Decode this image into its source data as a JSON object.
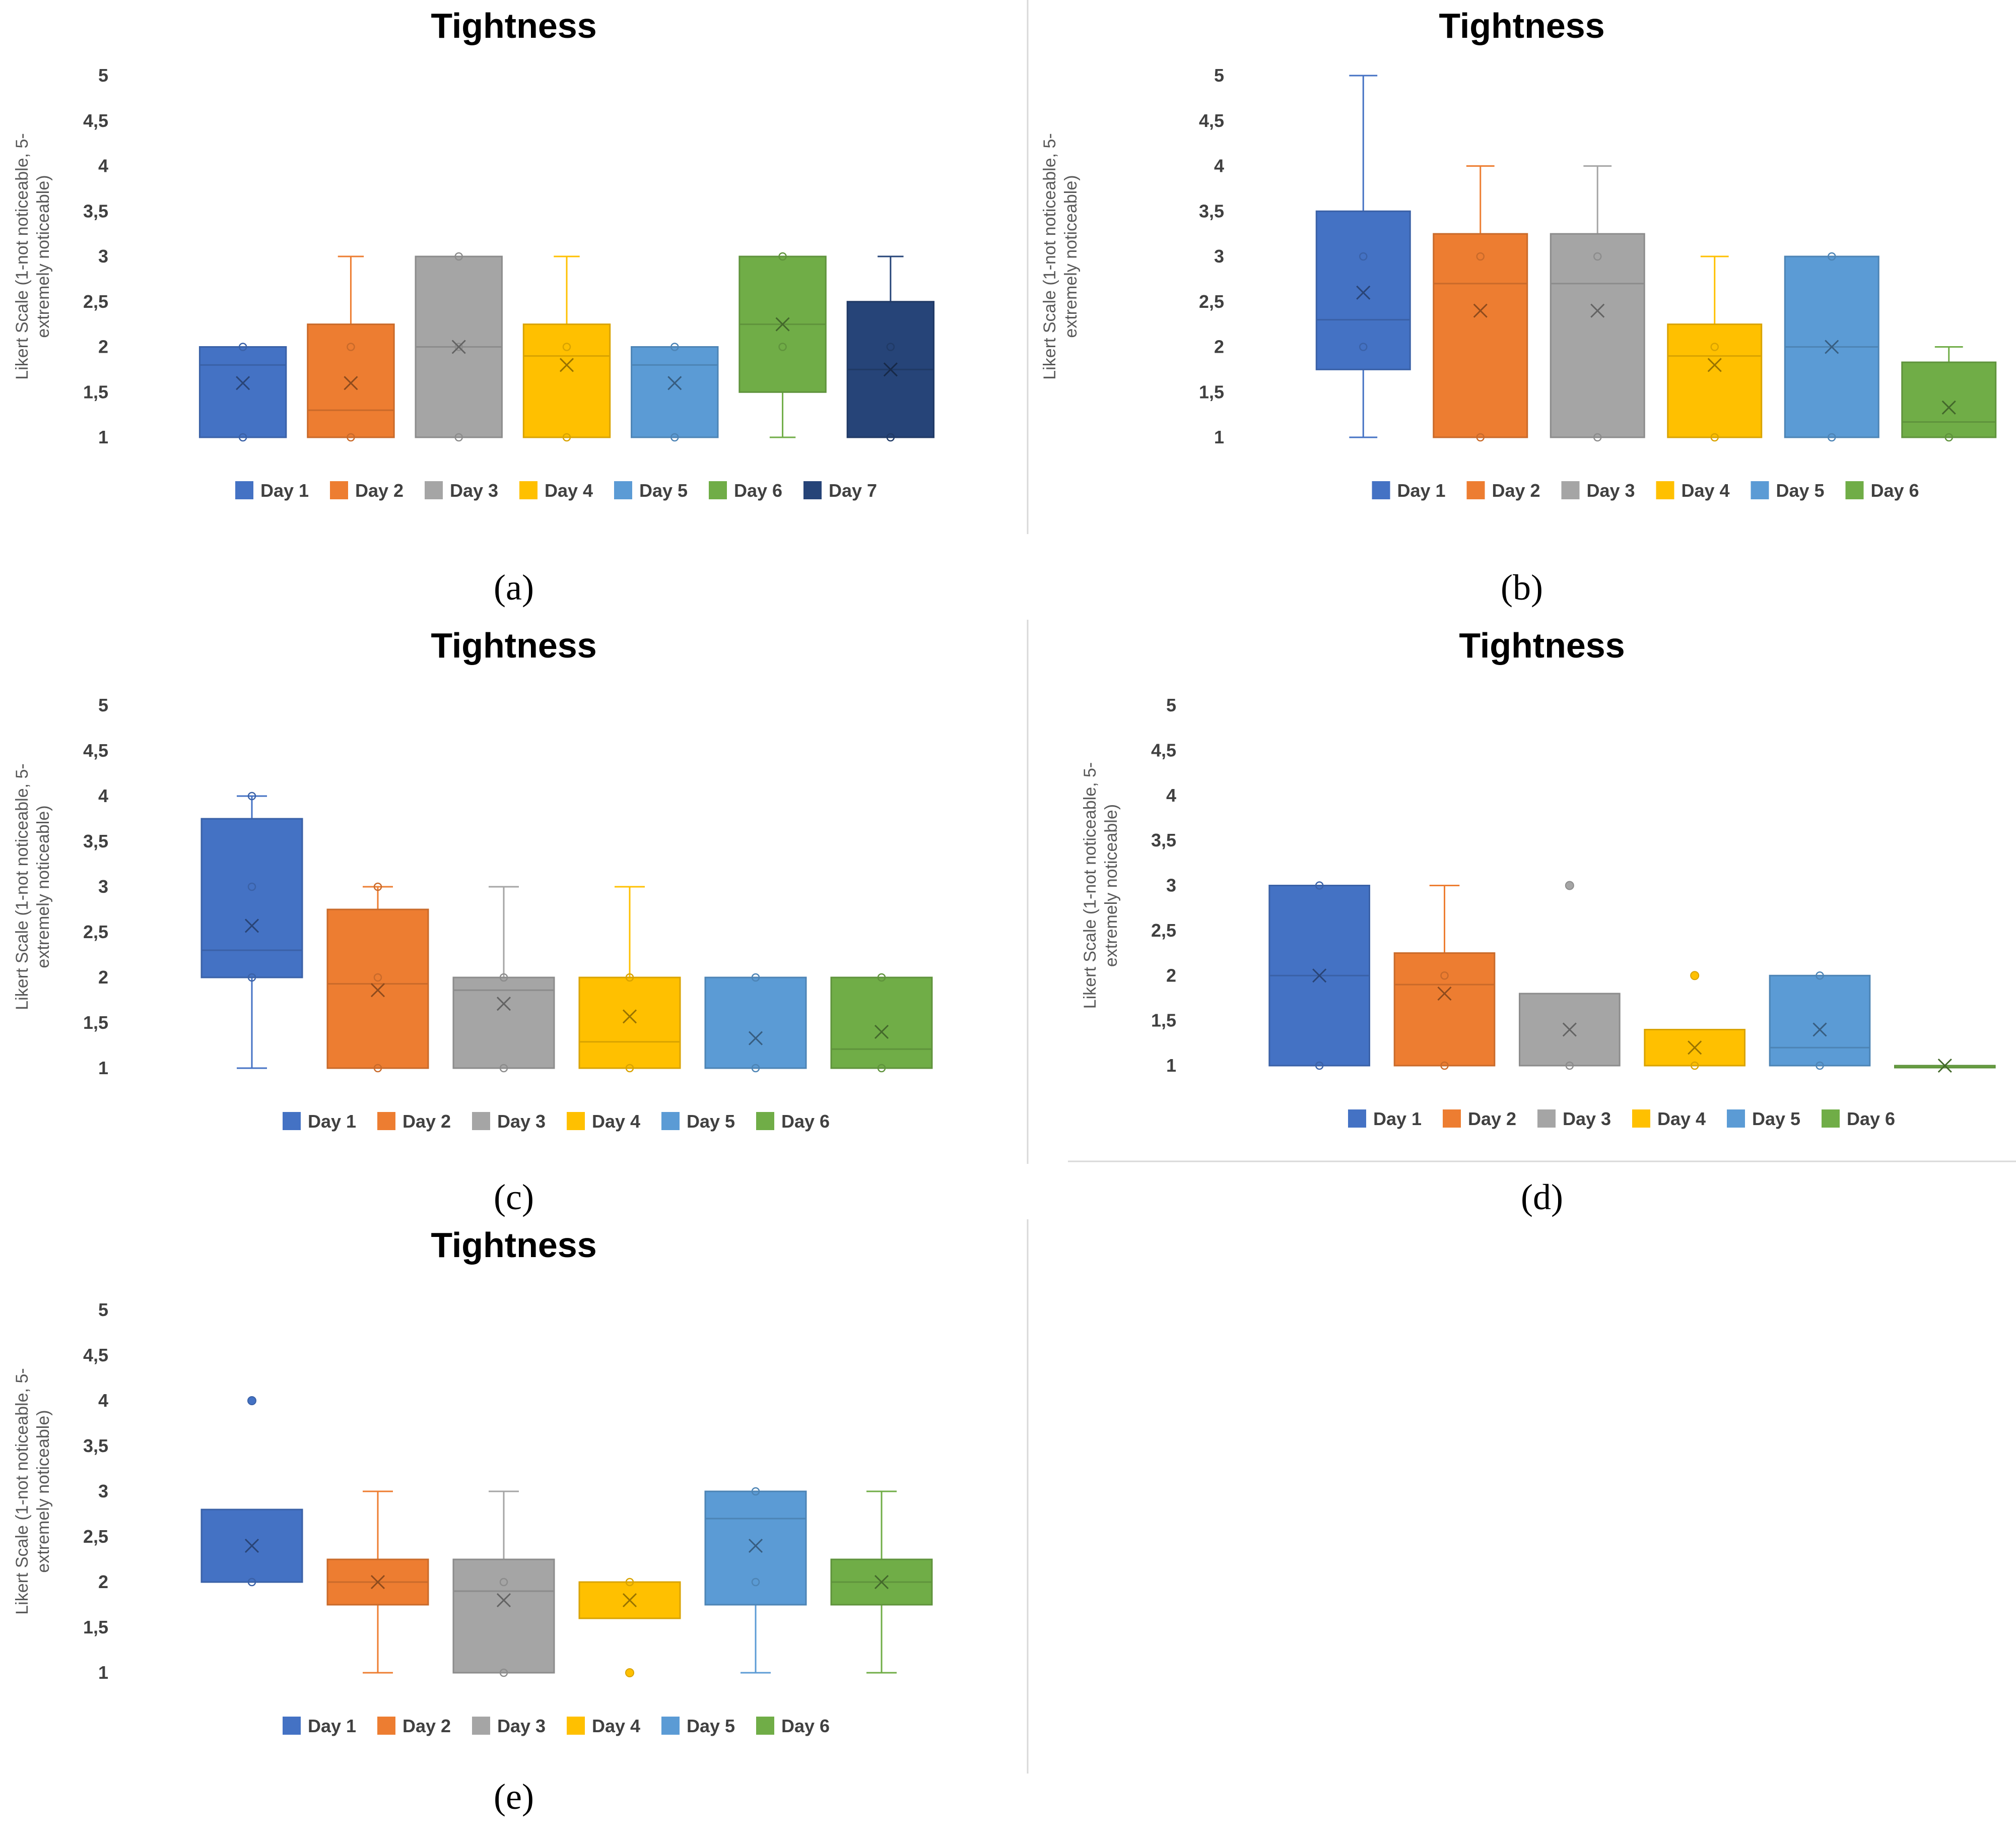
{
  "colors": {
    "Day 1": "#4472C4",
    "Day 2": "#ED7D31",
    "Day 3": "#A5A5A5",
    "Day 4": "#FFC000",
    "Day 5": "#5B9BD5",
    "Day 6": "#70AD47",
    "Day 7": "#264478"
  },
  "chart_data": [
    {
      "type": "box",
      "panel_label": "(a)",
      "title": "Tightness",
      "ylabel": "Likert Scale (1-not noticeable, 5-extremely noticeable)",
      "ylim": [
        1,
        5
      ],
      "yticks": [
        "1",
        "1,5",
        "2",
        "2,5",
        "3",
        "3,5",
        "4",
        "4,5",
        "5"
      ],
      "legend": "bottom",
      "series": [
        {
          "name": "Day 1",
          "min": 1,
          "q1": 1,
          "median": 1.8,
          "q3": 2,
          "max": 2,
          "mean": 1.6,
          "points": [
            1,
            2
          ],
          "outliers": []
        },
        {
          "name": "Day 2",
          "min": 1,
          "q1": 1,
          "median": 1.3,
          "q3": 2.25,
          "max": 3,
          "mean": 1.6,
          "points": [
            1,
            2
          ],
          "outliers": []
        },
        {
          "name": "Day 3",
          "min": 1,
          "q1": 1,
          "median": 2,
          "q3": 3,
          "max": 3,
          "mean": 2,
          "points": [
            1,
            2,
            3
          ],
          "outliers": []
        },
        {
          "name": "Day 4",
          "min": 1,
          "q1": 1,
          "median": 1.9,
          "q3": 2.25,
          "max": 3,
          "mean": 1.8,
          "points": [
            1,
            2
          ],
          "outliers": []
        },
        {
          "name": "Day 5",
          "min": 1,
          "q1": 1,
          "median": 1.8,
          "q3": 2,
          "max": 2,
          "mean": 1.6,
          "points": [
            1,
            2
          ],
          "outliers": []
        },
        {
          "name": "Day 6",
          "min": 1,
          "q1": 1.5,
          "median": 2.25,
          "q3": 3,
          "max": 3,
          "mean": 2.25,
          "points": [
            2,
            3
          ],
          "outliers": []
        },
        {
          "name": "Day 7",
          "min": 1,
          "q1": 1,
          "median": 1.75,
          "q3": 2.5,
          "max": 3,
          "mean": 1.75,
          "points": [
            1,
            2
          ],
          "outliers": []
        }
      ]
    },
    {
      "type": "box",
      "panel_label": "(b)",
      "title": "Tightness",
      "ylabel": "Likert Scale (1-not noticeable, 5-extremely noticeable)",
      "ylim": [
        1,
        5
      ],
      "yticks": [
        "1",
        "1,5",
        "2",
        "2,5",
        "3",
        "3,5",
        "4",
        "4,5",
        "5"
      ],
      "legend": "bottom",
      "series": [
        {
          "name": "Day 1",
          "min": 1,
          "q1": 1.75,
          "median": 2.3,
          "q3": 3.5,
          "max": 5,
          "mean": 2.6,
          "points": [
            2,
            3
          ],
          "outliers": []
        },
        {
          "name": "Day 2",
          "min": 1,
          "q1": 1,
          "median": 2.7,
          "q3": 3.25,
          "max": 4,
          "mean": 2.4,
          "points": [
            1,
            3
          ],
          "outliers": []
        },
        {
          "name": "Day 3",
          "min": 1,
          "q1": 1,
          "median": 2.7,
          "q3": 3.25,
          "max": 4,
          "mean": 2.4,
          "points": [
            1,
            3
          ],
          "outliers": []
        },
        {
          "name": "Day 4",
          "min": 1,
          "q1": 1,
          "median": 1.9,
          "q3": 2.25,
          "max": 3,
          "mean": 1.8,
          "points": [
            1,
            2
          ],
          "outliers": []
        },
        {
          "name": "Day 5",
          "min": 1,
          "q1": 1,
          "median": 2,
          "q3": 3,
          "max": 3,
          "mean": 2,
          "points": [
            1,
            3
          ],
          "outliers": []
        },
        {
          "name": "Day 6",
          "min": 1,
          "q1": 1,
          "median": 1.17,
          "q3": 1.83,
          "max": 2,
          "mean": 1.33,
          "points": [
            1
          ],
          "outliers": []
        }
      ]
    },
    {
      "type": "box",
      "panel_label": "(c)",
      "title": "Tightness",
      "ylabel": "Likert Scale (1-not noticeable, 5-extremely noticeable)",
      "ylim": [
        1,
        5
      ],
      "yticks": [
        "1",
        "1,5",
        "2",
        "2,5",
        "3",
        "3,5",
        "4",
        "4,5",
        "5"
      ],
      "legend": "bottom",
      "series": [
        {
          "name": "Day 1",
          "min": 1,
          "q1": 2,
          "median": 2.3,
          "q3": 3.75,
          "max": 4,
          "mean": 2.57,
          "points": [
            2,
            3,
            4
          ],
          "outliers": []
        },
        {
          "name": "Day 2",
          "min": 1,
          "q1": 1,
          "median": 1.93,
          "q3": 2.75,
          "max": 3,
          "mean": 1.86,
          "points": [
            1,
            2,
            3
          ],
          "outliers": []
        },
        {
          "name": "Day 3",
          "min": 1,
          "q1": 1,
          "median": 1.86,
          "q3": 2,
          "max": 3,
          "mean": 1.71,
          "points": [
            1,
            2
          ],
          "outliers": []
        },
        {
          "name": "Day 4",
          "min": 1,
          "q1": 1,
          "median": 1.29,
          "q3": 2,
          "max": 3,
          "mean": 1.57,
          "points": [
            1,
            2
          ],
          "outliers": []
        },
        {
          "name": "Day 5",
          "min": 1,
          "q1": 1,
          "median": 1,
          "q3": 2,
          "max": 2,
          "mean": 1.33,
          "points": [
            1,
            2
          ],
          "outliers": []
        },
        {
          "name": "Day 6",
          "min": 1,
          "q1": 1,
          "median": 1.21,
          "q3": 2,
          "max": 2,
          "mean": 1.4,
          "points": [
            1,
            2
          ],
          "outliers": []
        }
      ]
    },
    {
      "type": "box",
      "panel_label": "(d)",
      "title": "Tightness",
      "ylabel": "Likert Scale (1-not noticeable, 5-extremely noticeable)",
      "ylim": [
        1,
        5
      ],
      "yticks": [
        "1",
        "1,5",
        "2",
        "2,5",
        "3",
        "3,5",
        "4",
        "4,5",
        "5"
      ],
      "legend": "bottom",
      "series": [
        {
          "name": "Day 1",
          "min": 1,
          "q1": 1,
          "median": 2,
          "q3": 3,
          "max": 3,
          "mean": 2,
          "points": [
            1,
            3
          ],
          "outliers": []
        },
        {
          "name": "Day 2",
          "min": 1,
          "q1": 1,
          "median": 1.9,
          "q3": 2.25,
          "max": 3,
          "mean": 1.8,
          "points": [
            1,
            2
          ],
          "outliers": []
        },
        {
          "name": "Day 3",
          "min": 1,
          "q1": 1,
          "median": 1,
          "q3": 1.8,
          "max": 1.8,
          "mean": 1.4,
          "points": [
            1
          ],
          "outliers": [
            3
          ]
        },
        {
          "name": "Day 4",
          "min": 1,
          "q1": 1,
          "median": 1,
          "q3": 1.4,
          "max": 1.4,
          "mean": 1.2,
          "points": [
            1
          ],
          "outliers": [
            2
          ]
        },
        {
          "name": "Day 5",
          "min": 1,
          "q1": 1,
          "median": 1.2,
          "q3": 2,
          "max": 2,
          "mean": 1.4,
          "points": [
            1,
            2
          ],
          "outliers": []
        },
        {
          "name": "Day 6",
          "min": 1,
          "q1": 1,
          "median": 1,
          "q3": 1,
          "max": 1,
          "mean": 1,
          "points": [],
          "outliers": []
        }
      ]
    },
    {
      "type": "box",
      "panel_label": "(e)",
      "title": "Tightness",
      "ylabel": "Likert Scale (1-not noticeable, 5-extremely noticeable)",
      "ylim": [
        1,
        5
      ],
      "yticks": [
        "1",
        "1,5",
        "2",
        "2,5",
        "3",
        "3,5",
        "4",
        "4,5",
        "5"
      ],
      "legend": "bottom",
      "series": [
        {
          "name": "Day 1",
          "min": 2,
          "q1": 2,
          "median": 2,
          "q3": 2.8,
          "max": 2.8,
          "mean": 2.4,
          "points": [
            2
          ],
          "outliers": [
            4
          ]
        },
        {
          "name": "Day 2",
          "min": 1,
          "q1": 1.75,
          "median": 2,
          "q3": 2.25,
          "max": 3,
          "mean": 2,
          "points": [],
          "outliers": []
        },
        {
          "name": "Day 3",
          "min": 1,
          "q1": 1,
          "median": 1.9,
          "q3": 2.25,
          "max": 3,
          "mean": 1.8,
          "points": [
            1,
            2
          ],
          "outliers": []
        },
        {
          "name": "Day 4",
          "min": 1.6,
          "q1": 1.6,
          "median": 2,
          "q3": 2,
          "max": 2,
          "mean": 1.8,
          "points": [
            2
          ],
          "outliers": [
            1
          ]
        },
        {
          "name": "Day 5",
          "min": 1,
          "q1": 1.75,
          "median": 2.7,
          "q3": 3,
          "max": 3,
          "mean": 2.4,
          "points": [
            2,
            3
          ],
          "outliers": []
        },
        {
          "name": "Day 6",
          "min": 1,
          "q1": 1.75,
          "median": 2,
          "q3": 2.25,
          "max": 3,
          "mean": 2,
          "points": [],
          "outliers": []
        }
      ]
    }
  ]
}
